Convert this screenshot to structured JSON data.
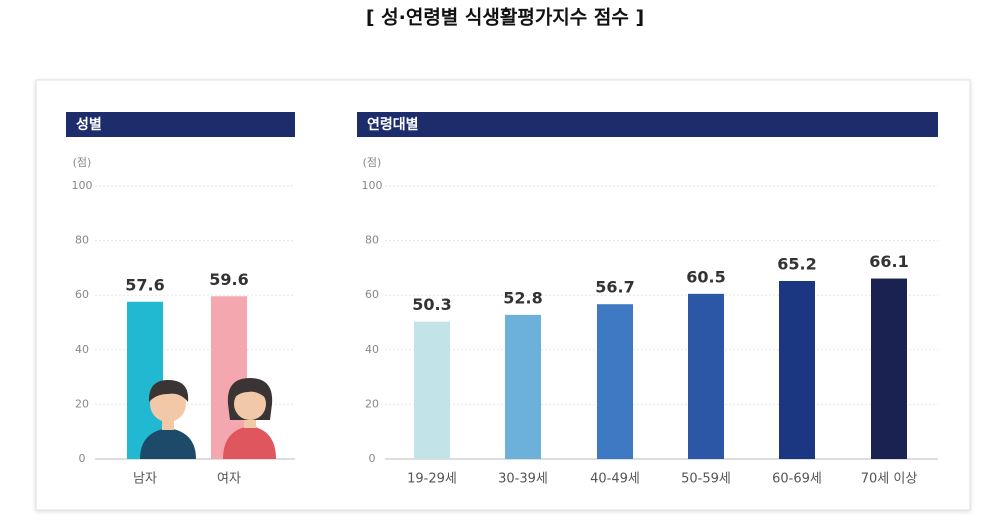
{
  "title": "[ 성·연령별 식생활평가지수 점수 ]",
  "chart_data": [
    {
      "type": "bar",
      "title": "성별",
      "y_label": "(점)",
      "categories": [
        "남자",
        "여자"
      ],
      "values": [
        57.6,
        59.6
      ],
      "colors": [
        "#20b9d1",
        "#f4a7ae"
      ],
      "ylim": [
        0,
        100
      ],
      "yticks": [
        0,
        20,
        40,
        60,
        80,
        100
      ],
      "grid": true
    },
    {
      "type": "bar",
      "title": "연령대별",
      "y_label": "(점)",
      "categories": [
        "19-29세",
        "30-39세",
        "40-49세",
        "50-59세",
        "60-69세",
        "70세 이상"
      ],
      "values": [
        50.3,
        52.8,
        56.7,
        60.5,
        65.2,
        66.1
      ],
      "colors": [
        "#c2e4e9",
        "#6cb1d9",
        "#3f79c3",
        "#2c57a7",
        "#1b3781",
        "#1a2251"
      ],
      "ylim": [
        0,
        100
      ],
      "yticks": [
        0,
        20,
        40,
        60,
        80,
        100
      ],
      "grid": true
    }
  ]
}
